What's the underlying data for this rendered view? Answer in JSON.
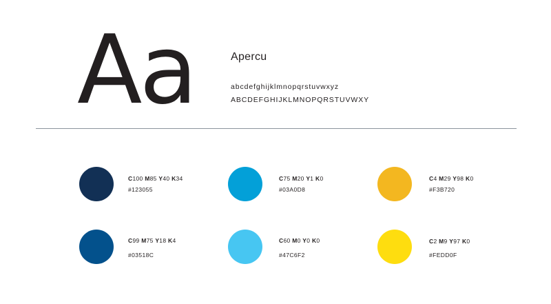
{
  "typography": {
    "specimen": "Aa",
    "font_name": "Apercu",
    "lowercase": "abcdefghijklmnopqrstuvwxyz",
    "uppercase": "ABCDEFGHIJKLMNOPQRSTUVWXY"
  },
  "swatches": [
    {
      "color": "#123055",
      "c": "100",
      "m": "85",
      "y": "40",
      "k": "34",
      "hex": "#123055"
    },
    {
      "color": "#03A0D8",
      "c": "75",
      "m": "20",
      "y": "1",
      "k": "0",
      "hex": "#03A0D8"
    },
    {
      "color": "#F3B720",
      "c": "4",
      "m": "29",
      "y": "98",
      "k": "0",
      "hex": "#F3B720"
    },
    {
      "color": "#03518C",
      "c": "99",
      "m": "75",
      "y": "18",
      "k": "4",
      "hex": "#03518C"
    },
    {
      "color": "#47C6F2",
      "c": "60",
      "m": "0",
      "y": "0",
      "k": "0",
      "hex": "#47C6F2"
    },
    {
      "color": "#FEDD0F",
      "c": "2",
      "m": "9",
      "y": "97",
      "k": "0",
      "hex": "#FEDD0F"
    }
  ],
  "cmyk_letters": {
    "c": "C",
    "m": "M",
    "y": "Y",
    "k": "K"
  }
}
